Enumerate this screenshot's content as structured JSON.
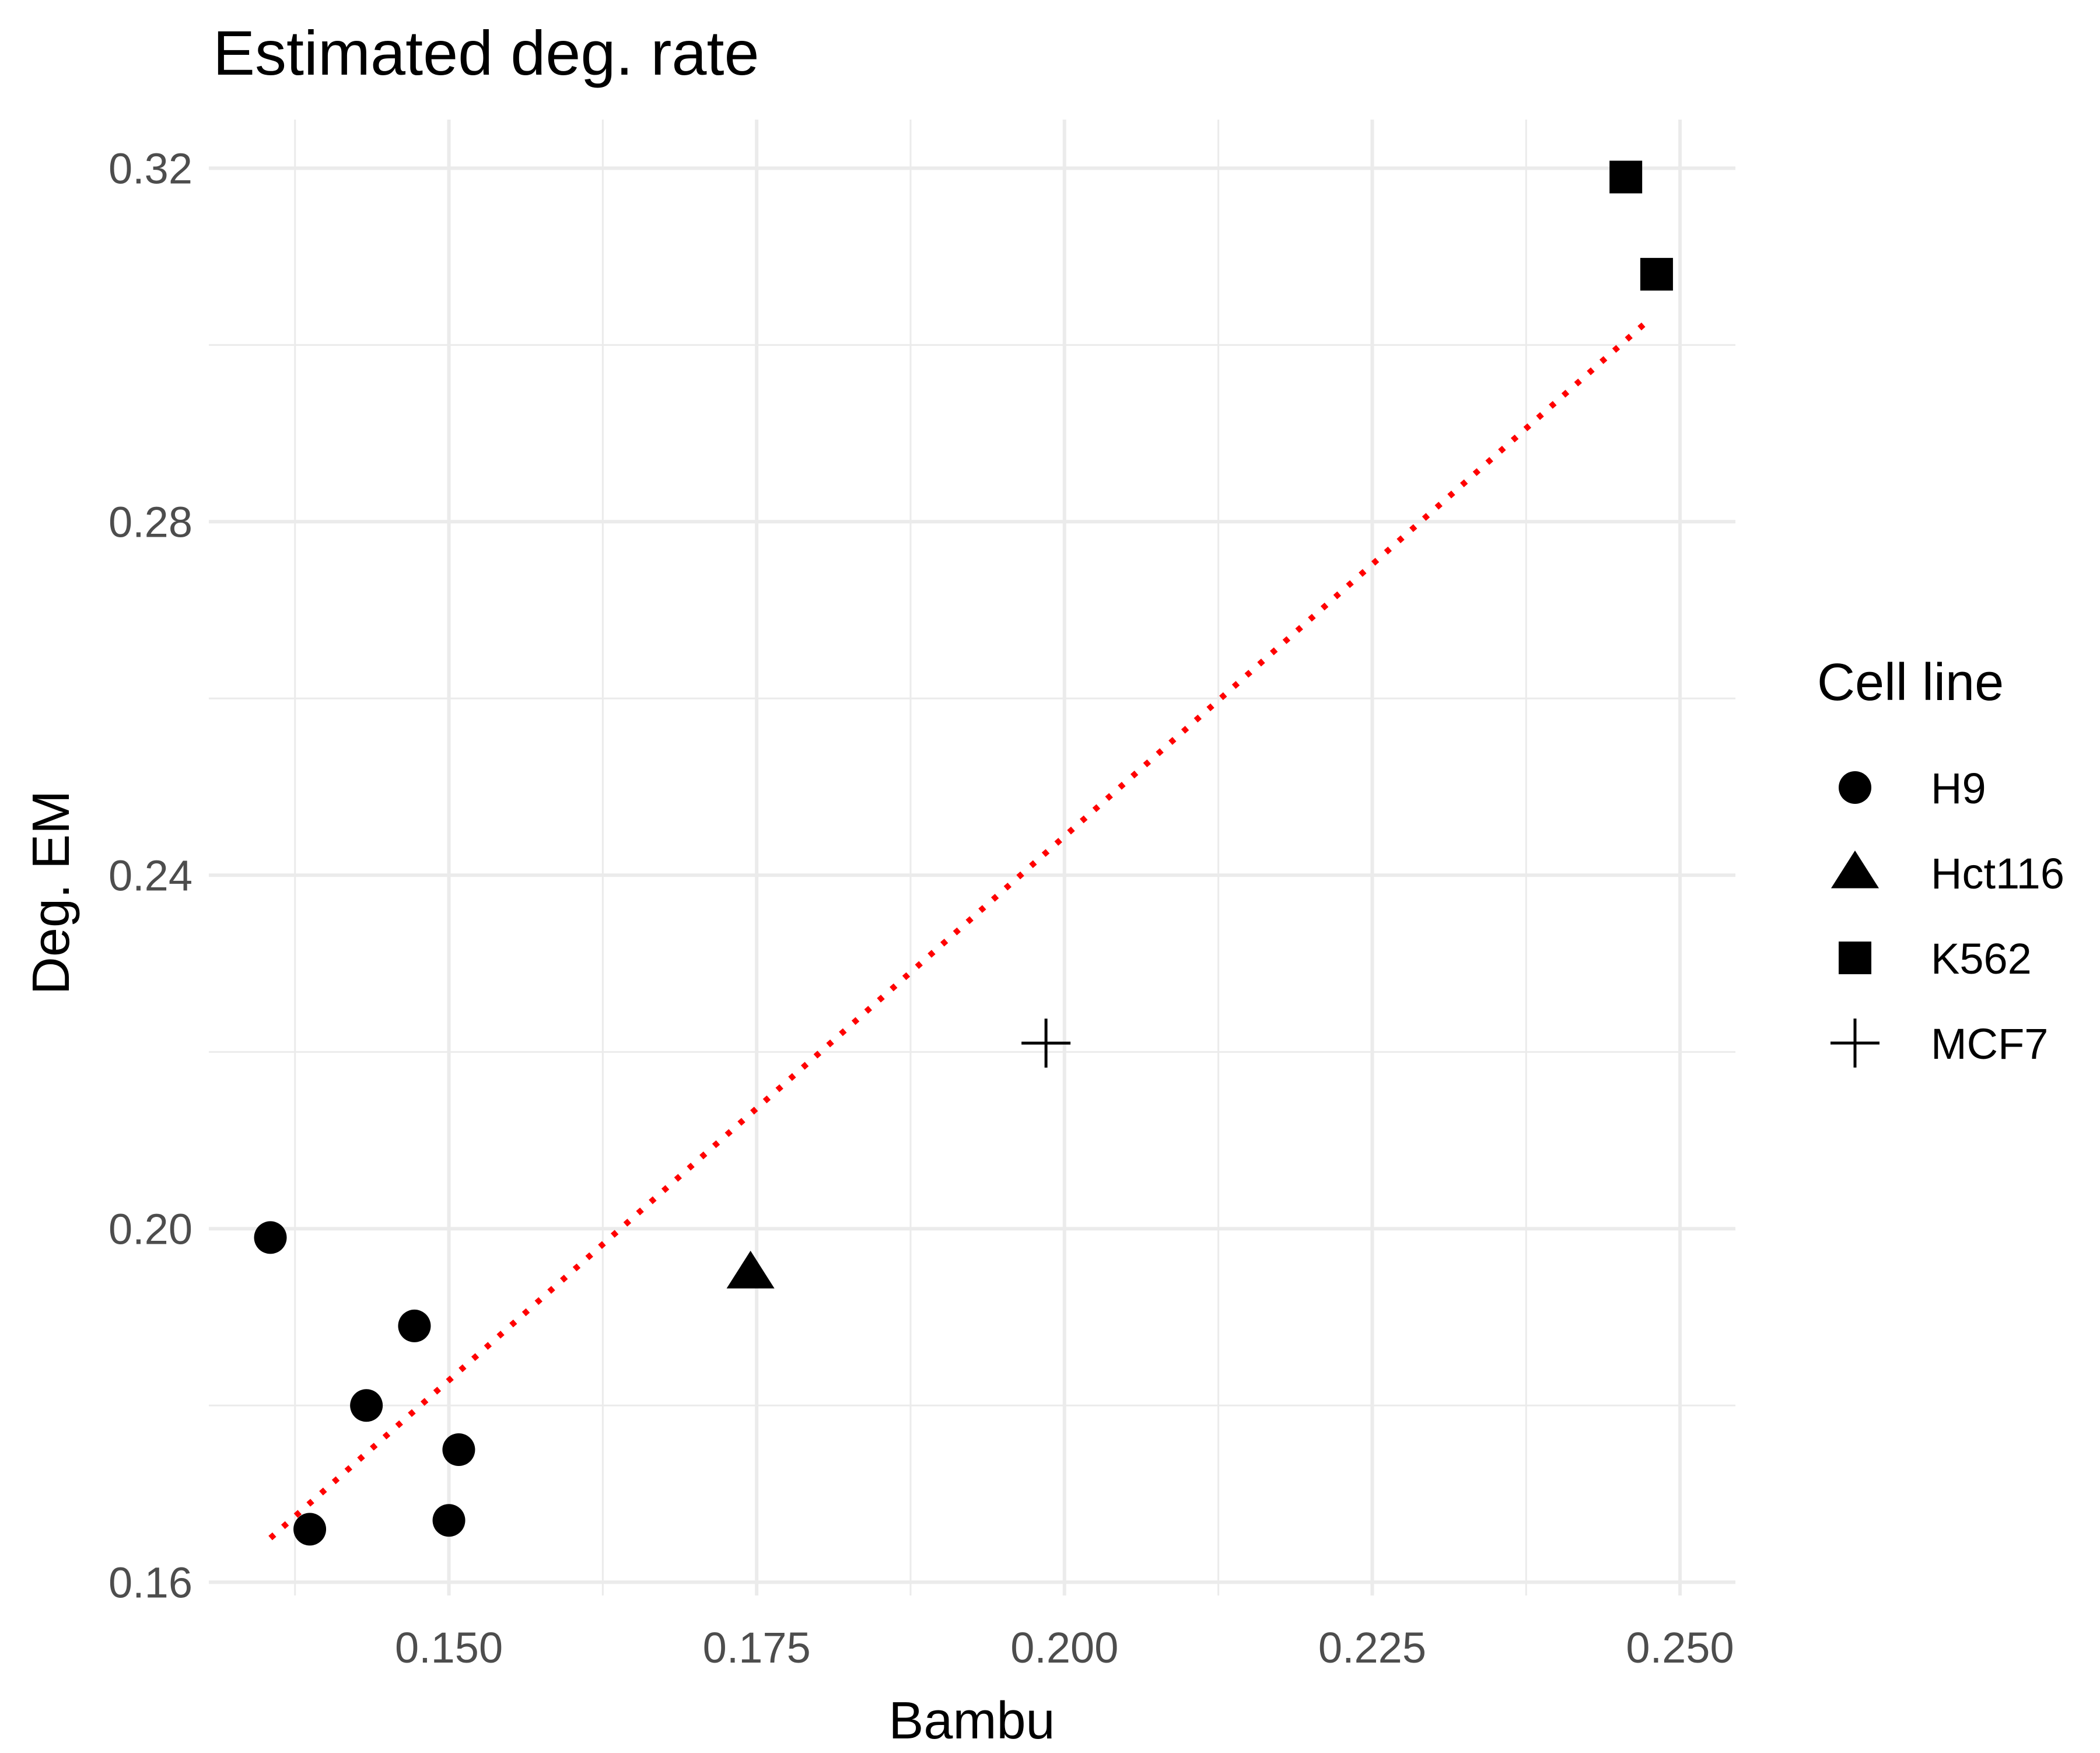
{
  "chart_data": {
    "type": "scatter",
    "title": "Estimated deg. rate",
    "xlabel": "Bambu",
    "ylabel": "Deg. EM",
    "xlim": [
      0.1305,
      0.2545
    ],
    "ylim": [
      0.1585,
      0.3255
    ],
    "x_ticks": [
      0.15,
      0.175,
      0.2,
      0.225,
      0.25
    ],
    "x_tick_labels": [
      "0.150",
      "0.175",
      "0.200",
      "0.225",
      "0.250"
    ],
    "x_minor_ticks": [
      0.1375,
      0.1625,
      0.1875,
      0.2125,
      0.2375
    ],
    "y_ticks": [
      0.16,
      0.2,
      0.24,
      0.28,
      0.32
    ],
    "y_tick_labels": [
      "0.16",
      "0.20",
      "0.24",
      "0.28",
      "0.32"
    ],
    "y_minor_ticks": [
      0.18,
      0.22,
      0.26,
      0.3
    ],
    "grid": true,
    "legend": {
      "title": "Cell line",
      "position": "right"
    },
    "series": [
      {
        "name": "H9",
        "shape": "circle",
        "points": [
          {
            "x": 0.1355,
            "y": 0.199
          },
          {
            "x": 0.1387,
            "y": 0.166
          },
          {
            "x": 0.1433,
            "y": 0.18
          },
          {
            "x": 0.1472,
            "y": 0.189
          },
          {
            "x": 0.15,
            "y": 0.167
          },
          {
            "x": 0.1508,
            "y": 0.175
          }
        ]
      },
      {
        "name": "Hct116",
        "shape": "triangle",
        "points": [
          {
            "x": 0.1745,
            "y": 0.195
          }
        ]
      },
      {
        "name": "K562",
        "shape": "square",
        "points": [
          {
            "x": 0.2456,
            "y": 0.319
          },
          {
            "x": 0.2481,
            "y": 0.308
          }
        ]
      },
      {
        "name": "MCF7",
        "shape": "plus",
        "points": [
          {
            "x": 0.1985,
            "y": 0.221
          }
        ]
      }
    ],
    "trend_line": {
      "style": "dotted",
      "color": "#ff0000",
      "x": [
        0.1355,
        0.2472
      ],
      "y": [
        0.165,
        0.3025
      ]
    }
  }
}
